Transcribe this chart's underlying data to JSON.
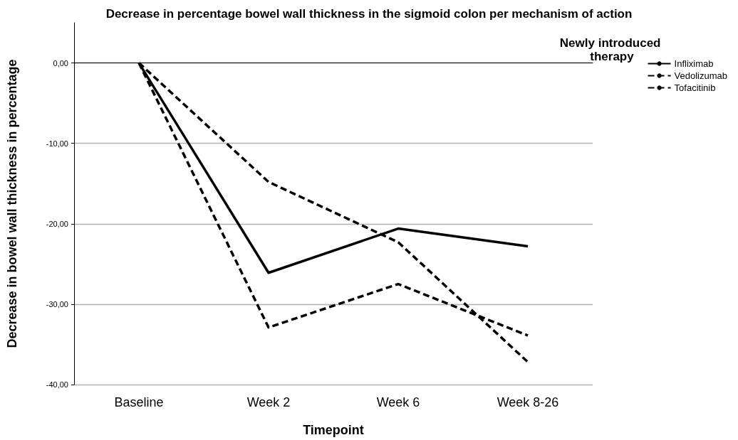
{
  "chart_data": {
    "type": "line",
    "title": "Decrease in percentage bowel wall thickness in the sigmoid colon per mechanism of action",
    "xlabel": "Timepoint",
    "ylabel": "Decrease in bowel wall thickness in percentage",
    "legend_title": "Newly introduced therapy",
    "categories": [
      "Baseline",
      "Week 2",
      "Week 6",
      "Week 8-26"
    ],
    "series": [
      {
        "name": "Infliximab",
        "color": "#000000",
        "line_style": "solid",
        "values": [
          0,
          -26.1,
          -20.6,
          -22.8
        ]
      },
      {
        "name": "Vedolizumab",
        "color": "#000000",
        "line_style": "dashed",
        "values": [
          0,
          -32.9,
          -27.5,
          -33.9
        ]
      },
      {
        "name": "Tofacitinib",
        "color": "#000000",
        "line_style": "dashed",
        "values": [
          0,
          -14.8,
          -22.3,
          -37.2
        ]
      }
    ],
    "ylim": [
      -40,
      5
    ],
    "yticks": [
      {
        "value": -40,
        "label": "-40,00"
      },
      {
        "value": -30,
        "label": "-30,00"
      },
      {
        "value": -20,
        "label": "-20,00"
      },
      {
        "value": -10,
        "label": "-10,00"
      },
      {
        "value": 0,
        "label": "0,00"
      }
    ],
    "grid": "y",
    "legend": "top right",
    "marker": "none"
  }
}
